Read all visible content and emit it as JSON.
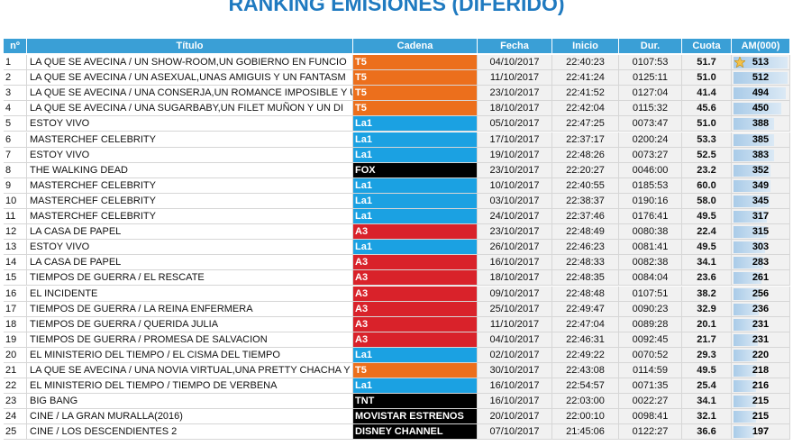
{
  "header": {
    "title": "RANKING EMISIONES (DIFERIDO)"
  },
  "table": {
    "header": [
      "nº",
      "Título",
      "Cadena",
      "Fecha",
      "Inicio",
      "Dur.",
      "Cuota",
      "AM(000)"
    ],
    "cadena_colors": {
      "T5": "#ec6f1c",
      "La1": "#1ba1e2",
      "FOX": "#000000",
      "A3": "#d9222a",
      "TNT": "#000000",
      "MOVISTAR ESTRENOS": "#000000",
      "DISNEY CHANNEL": "#000000"
    },
    "rows": [
      [
        1,
        "LA QUE SE AVECINA / UN SHOW-ROOM,UN GOBIERNO EN FUNCIO",
        "T5",
        "04/10/2017",
        "22:40:23",
        "0107:53",
        "51.7",
        513
      ],
      [
        2,
        "LA QUE SE AVECINA / UN ASEXUAL,UNAS AMIGUIS Y UN FANTASM",
        "T5",
        "11/10/2017",
        "22:41:24",
        "0125:11",
        "51.0",
        512
      ],
      [
        3,
        "LA QUE SE AVECINA / UNA CONSERJA,UN ROMANCE IMPOSIBLE Y U",
        "T5",
        "23/10/2017",
        "22:41:52",
        "0127:04",
        "41.4",
        494
      ],
      [
        4,
        "LA QUE SE AVECINA / UNA SUGARBABY,UN FILET MUÑON Y UN DI",
        "T5",
        "18/10/2017",
        "22:42:04",
        "0115:32",
        "45.6",
        450
      ],
      [
        5,
        "ESTOY VIVO",
        "La1",
        "05/10/2017",
        "22:47:25",
        "0073:47",
        "51.0",
        388
      ],
      [
        6,
        "MASTERCHEF CELEBRITY",
        "La1",
        "17/10/2017",
        "22:37:17",
        "0200:24",
        "53.3",
        385
      ],
      [
        7,
        "ESTOY VIVO",
        "La1",
        "19/10/2017",
        "22:48:26",
        "0073:27",
        "52.5",
        383
      ],
      [
        8,
        "THE WALKING DEAD",
        "FOX",
        "23/10/2017",
        "22:20:27",
        "0046:00",
        "23.2",
        352
      ],
      [
        9,
        "MASTERCHEF CELEBRITY",
        "La1",
        "10/10/2017",
        "22:40:55",
        "0185:53",
        "60.0",
        349
      ],
      [
        10,
        "MASTERCHEF CELEBRITY",
        "La1",
        "03/10/2017",
        "22:38:37",
        "0190:16",
        "58.0",
        345
      ],
      [
        11,
        "MASTERCHEF CELEBRITY",
        "La1",
        "24/10/2017",
        "22:37:46",
        "0176:41",
        "49.5",
        317
      ],
      [
        12,
        "LA CASA DE PAPEL",
        "A3",
        "23/10/2017",
        "22:48:49",
        "0080:38",
        "22.4",
        315
      ],
      [
        13,
        "ESTOY VIVO",
        "La1",
        "26/10/2017",
        "22:46:23",
        "0081:41",
        "49.5",
        303
      ],
      [
        14,
        "LA CASA DE PAPEL",
        "A3",
        "16/10/2017",
        "22:48:33",
        "0082:38",
        "34.1",
        283
      ],
      [
        15,
        "TIEMPOS DE GUERRA / EL RESCATE",
        "A3",
        "18/10/2017",
        "22:48:35",
        "0084:04",
        "23.6",
        261
      ],
      [
        16,
        "EL INCIDENTE",
        "A3",
        "09/10/2017",
        "22:48:48",
        "0107:51",
        "38.2",
        256
      ],
      [
        17,
        "TIEMPOS DE GUERRA / LA REINA ENFERMERA",
        "A3",
        "25/10/2017",
        "22:49:47",
        "0090:23",
        "32.9",
        236
      ],
      [
        18,
        "TIEMPOS DE GUERRA / QUERIDA JULIA",
        "A3",
        "11/10/2017",
        "22:47:04",
        "0089:28",
        "20.1",
        231
      ],
      [
        19,
        "TIEMPOS DE GUERRA / PROMESA DE SALVACION",
        "A3",
        "04/10/2017",
        "22:46:31",
        "0092:45",
        "21.7",
        231
      ],
      [
        20,
        "EL MINISTERIO DEL TIEMPO / EL CISMA DEL TIEMPO",
        "La1",
        "02/10/2017",
        "22:49:22",
        "0070:52",
        "29.3",
        220
      ],
      [
        21,
        "LA QUE SE AVECINA / UNA NOVIA VIRTUAL,UNA PRETTY CHACHA Y",
        "T5",
        "30/10/2017",
        "22:43:08",
        "0114:59",
        "49.5",
        218
      ],
      [
        22,
        "EL MINISTERIO DEL TIEMPO / TIEMPO DE VERBENA",
        "La1",
        "16/10/2017",
        "22:54:57",
        "0071:35",
        "25.4",
        216
      ],
      [
        23,
        "BIG BANG",
        "TNT",
        "16/10/2017",
        "22:03:00",
        "0022:27",
        "34.1",
        215
      ],
      [
        24,
        "CINE / LA GRAN MURALLA(2016)",
        "MOVISTAR ESTRENOS",
        "20/10/2017",
        "22:00:10",
        "0098:41",
        "32.1",
        215
      ],
      [
        25,
        "CINE / LOS DESCENDIENTES 2",
        "DISNEY CHANNEL",
        "07/10/2017",
        "21:45:06",
        "0122:27",
        "36.6",
        197
      ]
    ]
  }
}
